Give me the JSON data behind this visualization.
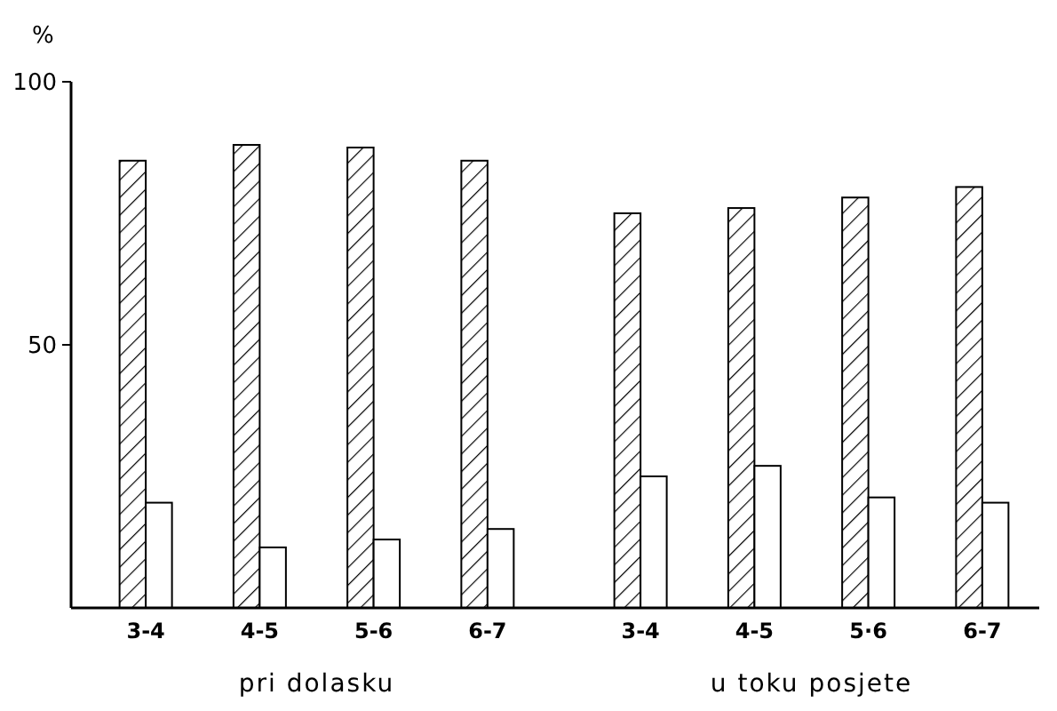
{
  "chart_data": {
    "type": "bar",
    "ylabel": "%",
    "categories": [
      "3-4",
      "4-5",
      "5-6",
      "6-7",
      "3-4",
      "4-5",
      "5·6",
      "6-7"
    ],
    "series": [
      {
        "color": "#000000",
        "values": [
          85,
          88,
          87.5,
          85,
          75,
          76,
          78,
          80
        ]
      },
      {
        "color": "#ffffff",
        "values": [
          20,
          11.5,
          13,
          15,
          25,
          27,
          21,
          20
        ]
      }
    ],
    "ylim": [
      0,
      100
    ],
    "yticks": [
      50,
      100
    ],
    "annotations": [
      "pri dolasku",
      "u toku posjete"
    ]
  }
}
